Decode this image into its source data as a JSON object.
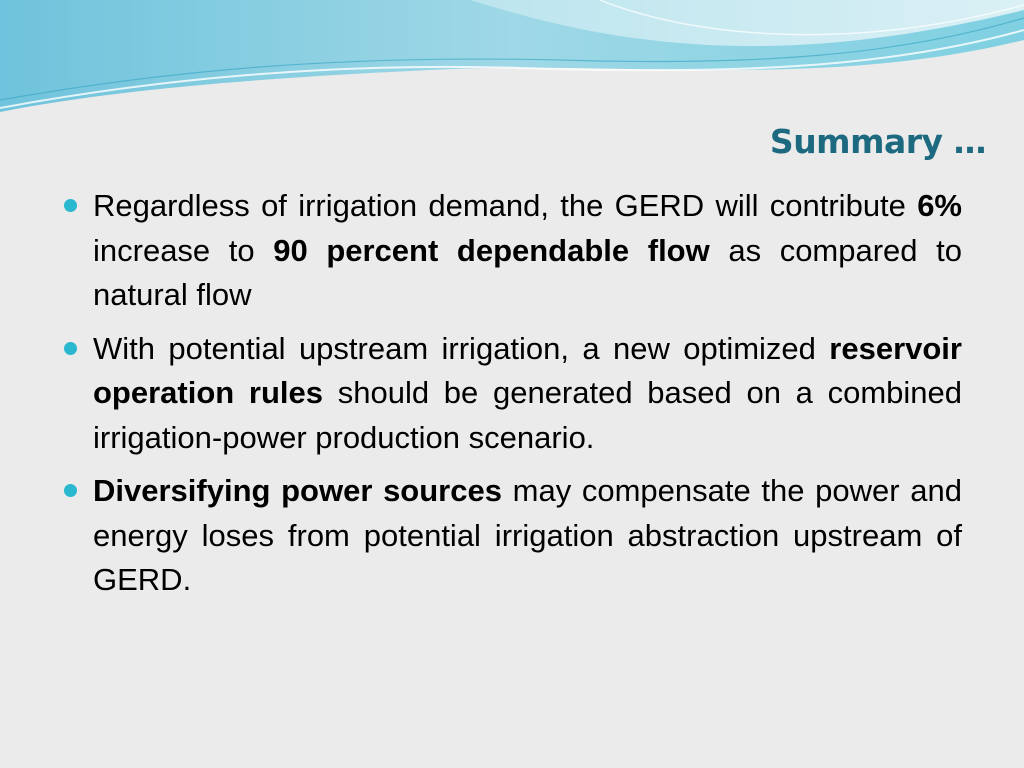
{
  "title": "Summary …",
  "bullets": [
    {
      "runs": [
        {
          "text": "Regardless of irrigation demand, the GERD will contribute ",
          "bold": false
        },
        {
          "text": "6%",
          "bold": true
        },
        {
          "text": " increase to ",
          "bold": false
        },
        {
          "text": "90 percent dependable flow",
          "bold": true
        },
        {
          "text": " as compared to natural flow",
          "bold": false
        }
      ]
    },
    {
      "runs": [
        {
          "text": "With potential upstream irrigation, a new optimized ",
          "bold": false
        },
        {
          "text": "reservoir operation rules",
          "bold": true
        },
        {
          "text": " should be generated based on a combined irrigation-power production scenario.",
          "bold": false
        }
      ]
    },
    {
      "runs": [
        {
          "text": "Diversifying power sources",
          "bold": true
        },
        {
          "text": " may compensate the power and energy loses from potential irrigation abstraction upstream of GERD.",
          "bold": false
        }
      ]
    }
  ]
}
